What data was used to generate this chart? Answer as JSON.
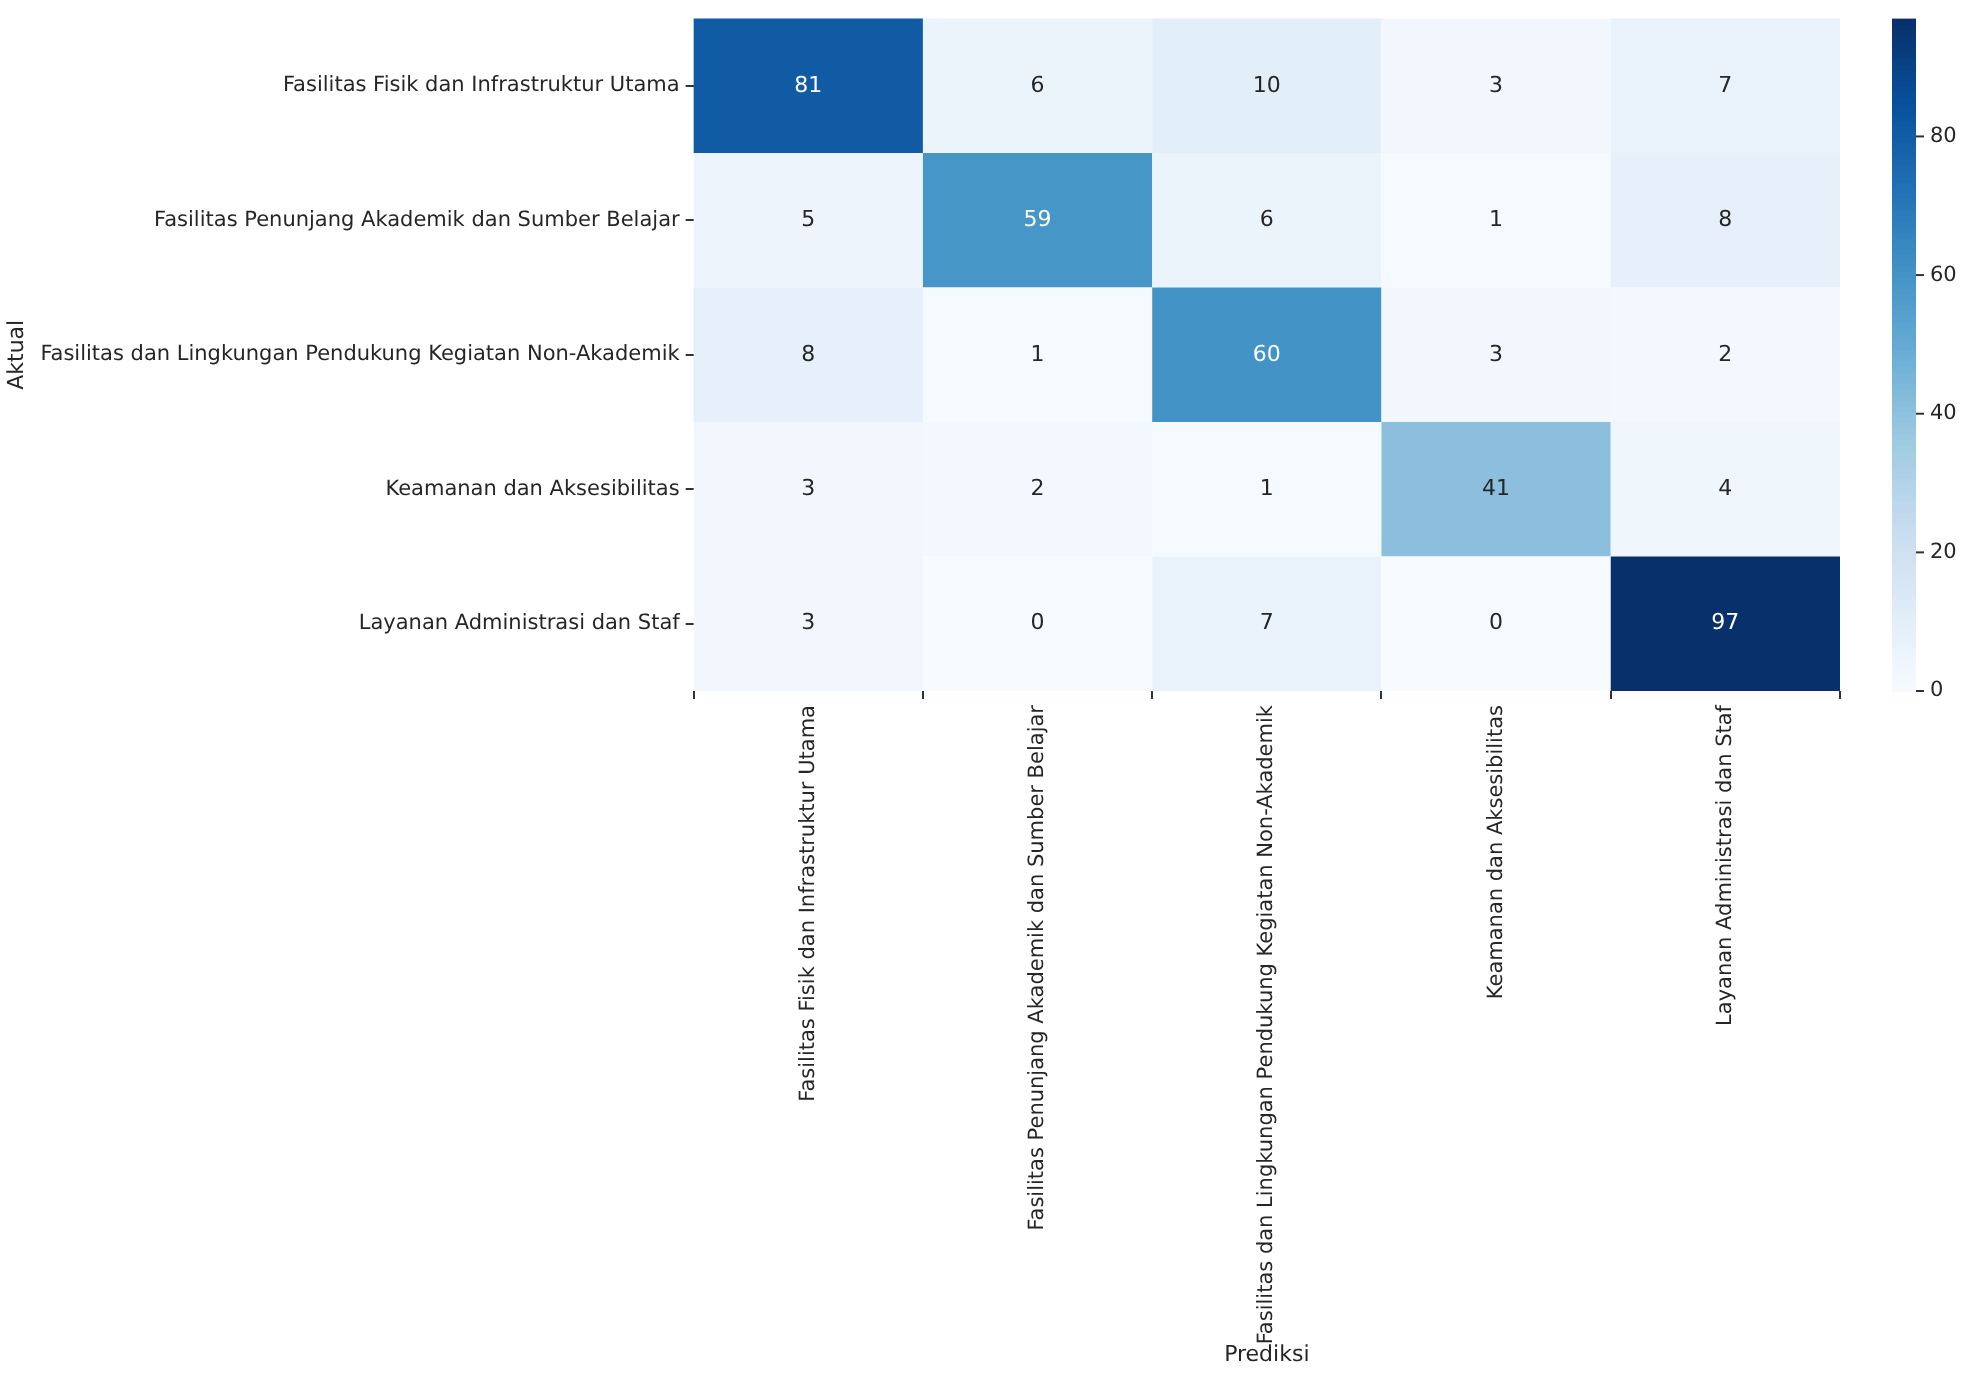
{
  "chart_data": {
    "type": "heatmap",
    "xlabel": "Prediksi",
    "ylabel": "Aktual",
    "categories": [
      "Fasilitas Fisik dan Infrastruktur Utama",
      "Fasilitas Penunjang Akademik dan Sumber Belajar",
      "Fasilitas dan Lingkungan Pendukung Kegiatan Non-Akademik",
      "Keamanan dan Aksesibilitas",
      "Layanan Administrasi dan Staf"
    ],
    "y_categories": [
      "Fasilitas Fisik dan Infrastruktur Utama",
      "Fasilitas Penunjang Akademik dan Sumber Belajar",
      "Fasilitas dan Lingkungan Pendukung Kegiatan Non-Akademik",
      "Keamanan dan Aksesibilitas",
      "Layanan Administrasi dan Staf"
    ],
    "cells": [
      [
        81,
        6,
        10,
        3,
        7
      ],
      [
        5,
        59,
        6,
        1,
        8
      ],
      [
        8,
        1,
        60,
        3,
        2
      ],
      [
        3,
        2,
        1,
        41,
        4
      ],
      [
        3,
        0,
        7,
        0,
        97
      ]
    ],
    "data_labels": true,
    "clim": [
      0,
      97
    ],
    "cticks": [
      0,
      20,
      40,
      60,
      80
    ]
  }
}
